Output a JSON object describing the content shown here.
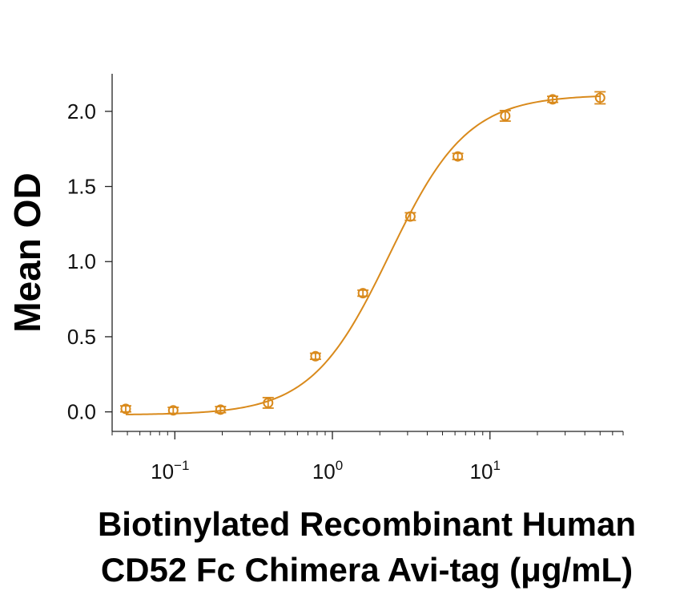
{
  "chart_data": {
    "type": "scatter",
    "xscale": "log",
    "xlim": [
      0.04,
      70
    ],
    "ylim": [
      -0.13,
      2.25
    ],
    "xlabel_lines": [
      "Biotinylated Recombinant Human",
      "CD52 Fc Chimera Avi-tag (μg/mL)"
    ],
    "ylabel": "Mean OD",
    "x_ticks": [
      {
        "value": 0.1,
        "base": "10",
        "exp": "−1"
      },
      {
        "value": 1,
        "base": "10",
        "exp": "0"
      },
      {
        "value": 10,
        "base": "10",
        "exp": "1"
      }
    ],
    "y_ticks": [
      {
        "value": 0.0,
        "label": "0.0"
      },
      {
        "value": 0.5,
        "label": "0.5"
      },
      {
        "value": 1.0,
        "label": "1.0"
      },
      {
        "value": 1.5,
        "label": "1.5"
      },
      {
        "value": 2.0,
        "label": "2.0"
      }
    ],
    "series": [
      {
        "color": "#d98a1c",
        "points": [
          {
            "x": 0.0488,
            "y": 0.02,
            "err": 0.02
          },
          {
            "x": 0.0977,
            "y": 0.01,
            "err": 0.02
          },
          {
            "x": 0.195,
            "y": 0.015,
            "err": 0.02
          },
          {
            "x": 0.391,
            "y": 0.06,
            "err": 0.035
          },
          {
            "x": 0.781,
            "y": 0.37,
            "err": 0.02
          },
          {
            "x": 1.5625,
            "y": 0.79,
            "err": 0.02
          },
          {
            "x": 3.125,
            "y": 1.3,
            "err": 0.025
          },
          {
            "x": 6.25,
            "y": 1.7,
            "err": 0.02
          },
          {
            "x": 12.5,
            "y": 1.97,
            "err": 0.035
          },
          {
            "x": 25,
            "y": 2.08,
            "err": 0.02
          },
          {
            "x": 50,
            "y": 2.09,
            "err": 0.04
          }
        ],
        "fit": {
          "model": "4PL",
          "bottom": -0.02,
          "top": 2.11,
          "ec50": 2.3,
          "hill": 1.75
        }
      }
    ]
  }
}
